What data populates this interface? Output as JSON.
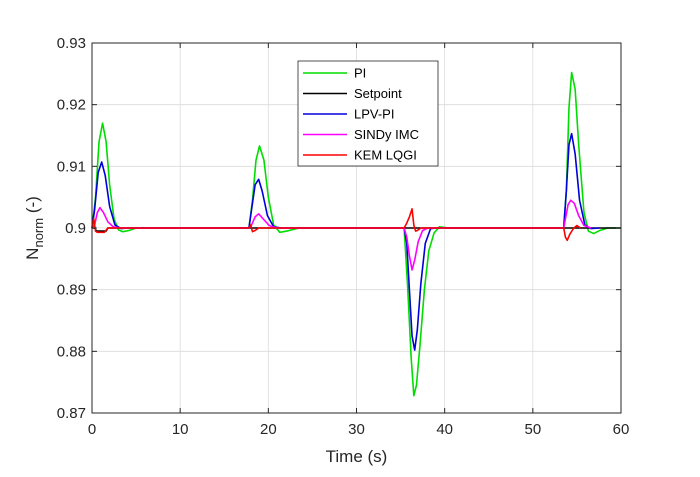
{
  "chart_data": {
    "type": "line",
    "xlabel": "Time (s)",
    "ylabel": {
      "main": "N",
      "subscript": "norm",
      "suffix": " (-)"
    },
    "xlim": [
      0,
      60
    ],
    "ylim": [
      0.87,
      0.93
    ],
    "xticks": [
      0,
      10,
      20,
      30,
      40,
      50,
      60
    ],
    "yticks": [
      0.87,
      0.88,
      0.89,
      0.9,
      0.91,
      0.92,
      0.93
    ],
    "xtick_labels": [
      "0",
      "10",
      "20",
      "30",
      "40",
      "50",
      "60"
    ],
    "ytick_labels": [
      "0.87",
      "0.88",
      "0.89",
      "0.9",
      "0.91",
      "0.92",
      "0.93"
    ],
    "grid": true,
    "legend_position": "top-center",
    "series": [
      {
        "name": "PI",
        "color": "#00dd00",
        "x": [
          0,
          0.4,
          0.8,
          1.2,
          1.6,
          2.0,
          2.5,
          3.0,
          3.5,
          4.2,
          5,
          17.8,
          18.2,
          18.6,
          19.0,
          19.5,
          20.0,
          20.6,
          21.3,
          22.1,
          23.5,
          35.4,
          35.8,
          36.2,
          36.5,
          36.8,
          37.2,
          37.7,
          38.2,
          38.8,
          39.4,
          40.5,
          53.5,
          53.8,
          54.1,
          54.4,
          54.8,
          55.2,
          55.8,
          56.3,
          56.9,
          57.6,
          58.5,
          60
        ],
        "y": [
          0.9,
          0.905,
          0.914,
          0.917,
          0.914,
          0.907,
          0.9015,
          0.8997,
          0.8994,
          0.8996,
          0.9,
          0.9,
          0.9045,
          0.911,
          0.9133,
          0.911,
          0.905,
          0.9005,
          0.8993,
          0.8995,
          0.9,
          0.9,
          0.8905,
          0.879,
          0.8728,
          0.8745,
          0.881,
          0.89,
          0.8963,
          0.8992,
          0.9002,
          0.9,
          0.9,
          0.906,
          0.9195,
          0.9252,
          0.9225,
          0.9135,
          0.9025,
          0.8995,
          0.8991,
          0.8996,
          0.9,
          0.9
        ]
      },
      {
        "name": "Setpoint",
        "color": "#000000",
        "x": [
          0,
          0.3,
          0.5,
          1.6,
          1.8,
          60
        ],
        "y": [
          0.9,
          0.9,
          0.8995,
          0.8995,
          0.9,
          0.9
        ]
      },
      {
        "name": "LPV-PI",
        "color": "#0000dd",
        "x": [
          0,
          0.3,
          0.7,
          1.1,
          1.5,
          2.0,
          2.6,
          3.3,
          4,
          17.8,
          18.1,
          18.5,
          18.9,
          19.3,
          19.9,
          20.6,
          21.5,
          35.4,
          35.7,
          36.0,
          36.3,
          36.6,
          36.9,
          37.3,
          37.8,
          38.4,
          39.2,
          53.5,
          53.8,
          54.1,
          54.4,
          54.8,
          55.3,
          55.9,
          56.6,
          57.5
        ],
        "y": [
          0.9,
          0.903,
          0.909,
          0.9107,
          0.9085,
          0.9035,
          0.9005,
          0.8999,
          0.9,
          0.9,
          0.903,
          0.907,
          0.9079,
          0.906,
          0.902,
          0.9002,
          0.9,
          0.9,
          0.8975,
          0.89,
          0.8825,
          0.8802,
          0.8835,
          0.891,
          0.8975,
          0.8999,
          0.9,
          0.9,
          0.906,
          0.9135,
          0.9153,
          0.912,
          0.9045,
          0.9005,
          0.8999,
          0.9
        ]
      },
      {
        "name": "SINDy IMC",
        "color": "#ff00ff",
        "x": [
          0,
          0.3,
          0.6,
          0.9,
          1.3,
          1.8,
          2.4,
          3.2,
          17.8,
          18.1,
          18.5,
          18.9,
          19.4,
          20.1,
          20.9,
          35.4,
          35.7,
          36.0,
          36.3,
          36.6,
          37.0,
          37.5,
          38.1,
          53.5,
          53.7,
          54.0,
          54.3,
          54.7,
          55.2,
          55.8,
          56.6
        ],
        "y": [
          0.9,
          0.9005,
          0.9025,
          0.9033,
          0.9025,
          0.901,
          0.9002,
          0.9,
          0.9,
          0.9005,
          0.9018,
          0.9023,
          0.9015,
          0.9004,
          0.9,
          0.9,
          0.8985,
          0.8955,
          0.8932,
          0.8948,
          0.8978,
          0.8996,
          0.9,
          0.9,
          0.9015,
          0.9038,
          0.9045,
          0.904,
          0.902,
          0.9004,
          0.9
        ]
      },
      {
        "name": "KEM LQGI",
        "color": "#ff0000",
        "x": [
          0,
          0.2,
          0.4,
          0.6,
          1.0,
          1.4,
          1.8,
          2.2,
          17.8,
          18.0,
          18.2,
          18.5,
          18.9,
          35.4,
          35.7,
          36.0,
          36.3,
          36.5,
          36.7,
          36.9,
          37.3,
          53.5,
          53.7,
          53.9,
          54.2,
          54.6,
          55.0,
          55.4
        ],
        "y": [
          0.9,
          0.9015,
          0.8995,
          0.8993,
          0.8993,
          0.8993,
          0.9,
          0.9,
          0.9,
          0.9005,
          0.8994,
          0.8996,
          0.9,
          0.9,
          0.9008,
          0.9018,
          0.9031,
          0.9005,
          0.8995,
          0.8996,
          0.9,
          0.9,
          0.8985,
          0.898,
          0.899,
          0.8999,
          0.9004,
          0.9
        ]
      }
    ]
  }
}
